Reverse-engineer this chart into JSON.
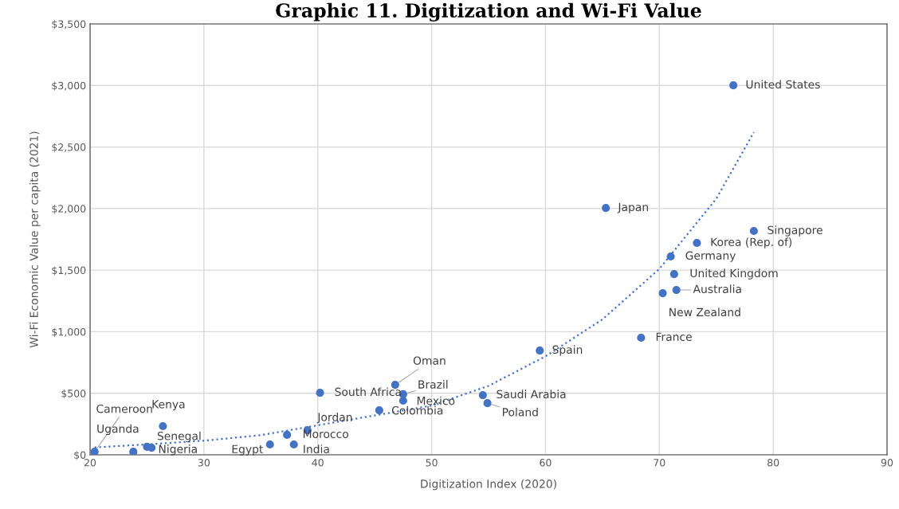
{
  "chart_data": {
    "type": "scatter",
    "title": "Graphic 11. Digitization and Wi-Fi Value",
    "xlabel": "Digitization Index (2020)",
    "ylabel": "Wi-Fi Economic Value per capita (2021)",
    "xlim": [
      20,
      90
    ],
    "xticks": [
      20,
      30,
      40,
      50,
      60,
      70,
      80,
      90
    ],
    "ylim": [
      0,
      3500
    ],
    "yticks": [
      {
        "value": 0,
        "label": "$0"
      },
      {
        "value": 500,
        "label": "$500"
      },
      {
        "value": 1000,
        "label": "$1,000"
      },
      {
        "value": 1500,
        "label": "$1,500"
      },
      {
        "value": 2000,
        "label": "$2,000"
      },
      {
        "value": 2500,
        "label": "$2,500"
      },
      {
        "value": 3000,
        "label": "$3,000"
      },
      {
        "value": 3500,
        "label": "$3,500"
      }
    ],
    "grid": true,
    "series": [
      {
        "marker": "circle",
        "color": "#4472c4",
        "x": [
          20.4,
          23.8,
          25.0,
          25.4,
          26.4,
          35.8,
          37.3,
          37.9,
          39.1,
          40.2,
          45.4,
          46.8,
          47.5,
          47.5,
          54.5,
          54.9,
          59.5,
          68.4,
          70.3,
          71.0,
          71.3,
          71.5,
          73.3,
          78.3,
          65.3,
          76.5
        ],
        "values": [
          25,
          25,
          65,
          58,
          233,
          84,
          162,
          84,
          200,
          504,
          362,
          569,
          492,
          440,
          485,
          420,
          847,
          951,
          1313,
          1611,
          1468,
          1339,
          1721,
          1818,
          2005,
          3001
        ]
      },
      {
        "type": "line",
        "line_style": "dotted",
        "color": "#4472c4",
        "x": [
          20.4,
          25,
          30,
          35,
          40,
          45,
          50,
          55,
          60,
          65,
          70,
          75,
          78.3
        ],
        "values": [
          60,
          85,
          115,
          160,
          240,
          320,
          400,
          560,
          800,
          1100,
          1510,
          2080,
          2620
        ]
      }
    ],
    "annotations": [
      {
        "text": "Cameroon",
        "x": 20.4,
        "y": 25
      },
      {
        "text": "Uganda",
        "x": 23.8,
        "y": 25
      },
      {
        "text": "Senegal",
        "x": 25.0,
        "y": 65
      },
      {
        "text": "Nigeria",
        "x": 25.4,
        "y": 58
      },
      {
        "text": "Kenya",
        "x": 26.4,
        "y": 233
      },
      {
        "text": "Egypt",
        "x": 35.8,
        "y": 84
      },
      {
        "text": "Morocco",
        "x": 37.3,
        "y": 162
      },
      {
        "text": "India",
        "x": 37.9,
        "y": 84
      },
      {
        "text": "Jordan",
        "x": 39.1,
        "y": 200
      },
      {
        "text": "South Africa",
        "x": 40.2,
        "y": 504
      },
      {
        "text": "Colombia",
        "x": 45.4,
        "y": 362
      },
      {
        "text": "Oman",
        "x": 46.8,
        "y": 569
      },
      {
        "text": "Brazil",
        "x": 47.5,
        "y": 492
      },
      {
        "text": "Mexico",
        "x": 47.5,
        "y": 440
      },
      {
        "text": "Saudi Arabia",
        "x": 54.5,
        "y": 485
      },
      {
        "text": "Poland",
        "x": 54.9,
        "y": 420
      },
      {
        "text": "Spain",
        "x": 59.5,
        "y": 847
      },
      {
        "text": "France",
        "x": 68.4,
        "y": 951
      },
      {
        "text": "New Zealand",
        "x": 70.3,
        "y": 1313
      },
      {
        "text": "Germany",
        "x": 71.0,
        "y": 1611
      },
      {
        "text": "United Kingdom",
        "x": 71.3,
        "y": 1468
      },
      {
        "text": "Australia",
        "x": 71.5,
        "y": 1339
      },
      {
        "text": "Korea (Rep. of)",
        "x": 73.3,
        "y": 1721
      },
      {
        "text": "Singapore",
        "x": 78.3,
        "y": 1818
      },
      {
        "text": "Japan",
        "x": 65.3,
        "y": 2005
      },
      {
        "text": "United States",
        "x": 76.5,
        "y": 3001
      }
    ]
  }
}
